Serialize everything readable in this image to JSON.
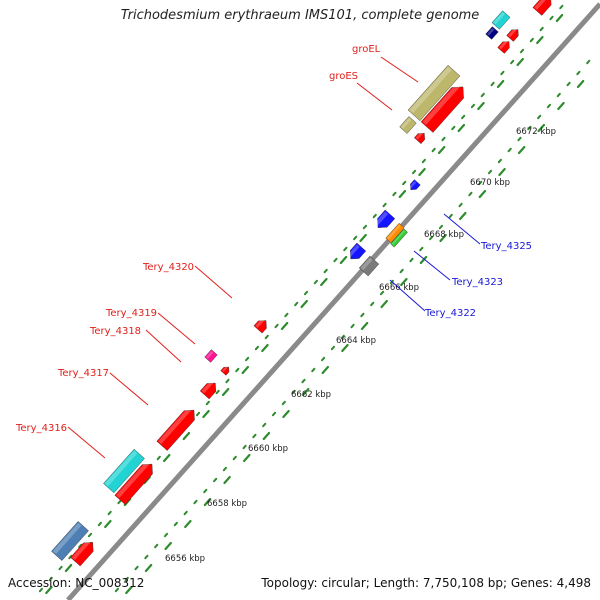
{
  "title": "Trichodesmium erythraeum IMS101, complete genome",
  "footer": {
    "accession": "Accession: NC_008312",
    "summary": "Topology: circular; Length: 7,750,108 bp; Genes: 4,498"
  },
  "colors": {
    "backbone": "#8a8a8a",
    "tick": "#2e8b2e",
    "leader_forward": "#e0201c",
    "leader_reverse": "#1a1ad6",
    "cds": "#ff0000",
    "gene_olive": "#bdb76b",
    "gene_cyan": "#22d3d3",
    "gene_blue": "#1414ff",
    "gene_gray": "#7a7a7a",
    "gene_orange": "#ff8c00",
    "gene_green": "#33cc33",
    "gene_magenta": "#ff1493",
    "gene_steel": "#4d7fb5",
    "gene_navy": "#000080"
  },
  "scale_labels": [
    "6656 kbp",
    "6658 kbp",
    "6660 kbp",
    "6662 kbp",
    "6664 kbp",
    "6666 kbp",
    "6668 kbp",
    "6670 kbp",
    "6672 kbp"
  ],
  "gene_labels": {
    "forward": [
      "groEL",
      "groES",
      "Tery_4320",
      "Tery_4319",
      "Tery_4318",
      "Tery_4317",
      "Tery_4316"
    ],
    "reverse": [
      "Tery_4325",
      "Tery_4323",
      "Tery_4322"
    ]
  }
}
